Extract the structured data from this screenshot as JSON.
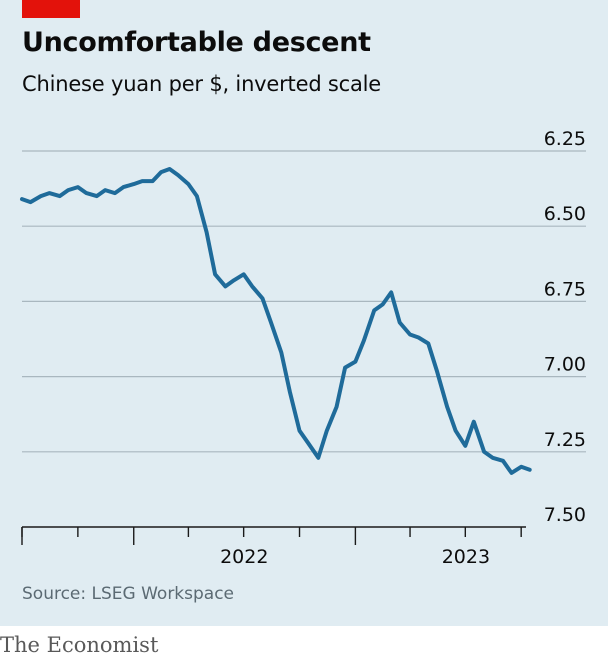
{
  "brand_tag_color": "#e3120b",
  "title": "Uncomfortable descent",
  "subtitle": "Chinese yuan per $, inverted scale",
  "source": "Source: LSEG Workspace",
  "brand": "The Economist",
  "chart_data": {
    "type": "line",
    "ylabel": "",
    "xlabel": "",
    "y_inverted": true,
    "ylim": [
      6.25,
      7.5
    ],
    "yticks": [
      "6.25",
      "6.50",
      "6.75",
      "7.00",
      "7.25",
      "7.50"
    ],
    "yticks_values": [
      6.25,
      6.5,
      6.75,
      7.0,
      7.25,
      7.5
    ],
    "xticks": [
      "2022",
      "2023"
    ],
    "xlim": [
      "2021-07",
      "2023-11"
    ],
    "grid": true,
    "line_color": "#1f6b9a",
    "series": [
      {
        "x": [
          "2021-07-01",
          "2021-07-15",
          "2021-08-01",
          "2021-08-15",
          "2021-09-01",
          "2021-09-15",
          "2021-10-01",
          "2021-10-15",
          "2021-11-01",
          "2021-11-15",
          "2021-12-01",
          "2021-12-15",
          "2022-01-01",
          "2022-01-15",
          "2022-02-01",
          "2022-02-15",
          "2022-03-01",
          "2022-03-15",
          "2022-04-01",
          "2022-04-15",
          "2022-05-01",
          "2022-05-15",
          "2022-06-01",
          "2022-06-15",
          "2022-07-01",
          "2022-07-15",
          "2022-08-01",
          "2022-08-15",
          "2022-09-01",
          "2022-09-15",
          "2022-10-01",
          "2022-10-15",
          "2022-11-01",
          "2022-11-15",
          "2022-12-01",
          "2022-12-15",
          "2023-01-01",
          "2023-01-15",
          "2023-02-01",
          "2023-02-15",
          "2023-03-01",
          "2023-03-15",
          "2023-04-01",
          "2023-04-15",
          "2023-05-01",
          "2023-05-15",
          "2023-06-01",
          "2023-06-15",
          "2023-07-01",
          "2023-07-15",
          "2023-08-01",
          "2023-08-15",
          "2023-09-01",
          "2023-09-15",
          "2023-10-01",
          "2023-10-15"
        ],
        "values": [
          6.41,
          6.42,
          6.4,
          6.39,
          6.4,
          6.38,
          6.37,
          6.39,
          6.4,
          6.38,
          6.39,
          6.37,
          6.36,
          6.35,
          6.35,
          6.32,
          6.31,
          6.33,
          6.36,
          6.4,
          6.52,
          6.66,
          6.7,
          6.68,
          6.66,
          6.7,
          6.74,
          6.82,
          6.92,
          7.05,
          7.18,
          7.22,
          7.27,
          7.18,
          7.1,
          6.97,
          6.95,
          6.88,
          6.78,
          6.76,
          6.72,
          6.82,
          6.86,
          6.87,
          6.89,
          6.98,
          7.1,
          7.18,
          7.23,
          7.15,
          7.25,
          7.27,
          7.28,
          7.32,
          7.3,
          7.31
        ]
      }
    ]
  }
}
